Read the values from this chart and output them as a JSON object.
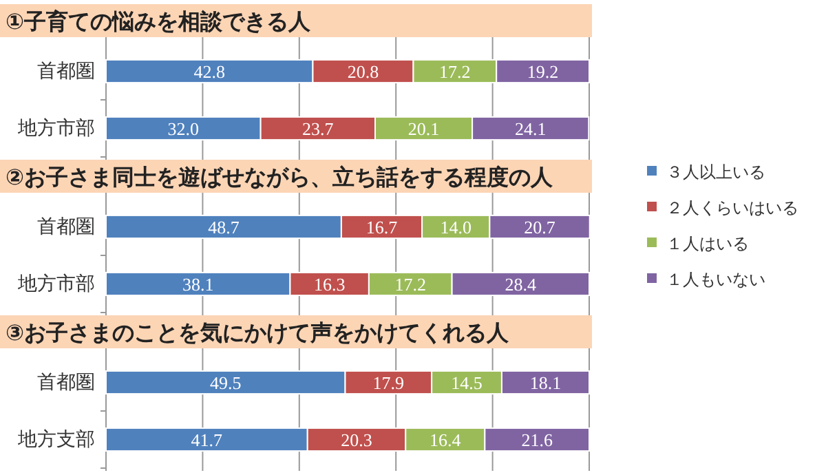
{
  "chart_data": [
    {
      "type": "bar",
      "orientation": "horizontal",
      "stacked": true,
      "title": "①子育ての悩みを相談できる人",
      "categories": [
        "首都圏",
        "地方市部"
      ],
      "xlim": [
        0,
        100
      ],
      "xticks": [
        {
          "value": 0,
          "label": null
        },
        {
          "value": 20,
          "label": null
        },
        {
          "value": 40,
          "label": null
        },
        {
          "value": 60,
          "label": null
        },
        {
          "value": 80,
          "label": null
        },
        {
          "value": 100,
          "label": null
        }
      ],
      "tick_labels": "y",
      "grid": "x",
      "legend": false,
      "series": [
        {
          "color": "#4f81bd",
          "values": [
            42.8,
            32.0
          ],
          "value_labels": [
            "42.8",
            "32.0"
          ]
        },
        {
          "color": "#c0504d",
          "values": [
            20.8,
            23.7
          ],
          "value_labels": [
            "20.8",
            "23.7"
          ]
        },
        {
          "color": "#9bbb59",
          "values": [
            17.2,
            20.1
          ],
          "value_labels": [
            "17.2",
            "20.1"
          ]
        },
        {
          "color": "#8064a2",
          "values": [
            19.2,
            24.1
          ],
          "value_labels": [
            "19.2",
            "24.1"
          ]
        }
      ]
    },
    {
      "type": "bar",
      "orientation": "horizontal",
      "stacked": true,
      "title": "②お子さま同士を遊ばせながら、立ち話をする程度の人",
      "categories": [
        "首都圏",
        "地方市部"
      ],
      "xlim": [
        0,
        100
      ],
      "xticks": [
        {
          "value": 0,
          "label": null
        },
        {
          "value": 20,
          "label": null
        },
        {
          "value": 40,
          "label": null
        },
        {
          "value": 60,
          "label": null
        },
        {
          "value": 80,
          "label": null
        },
        {
          "value": 100,
          "label": null
        }
      ],
      "tick_labels": "y",
      "grid": "x",
      "legend": "right",
      "series": [
        {
          "name": "３人以上いる",
          "color": "#4f81bd",
          "values": [
            48.7,
            38.1
          ],
          "value_labels": [
            "48.7",
            "38.1"
          ]
        },
        {
          "name": "２人くらいはいる",
          "color": "#c0504d",
          "values": [
            16.7,
            16.3
          ],
          "value_labels": [
            "16.7",
            "16.3"
          ]
        },
        {
          "name": "１人はいる",
          "color": "#9bbb59",
          "values": [
            14.0,
            17.2
          ],
          "value_labels": [
            "14.0",
            "17.2"
          ]
        },
        {
          "name": "１人もいない",
          "color": "#8064a2",
          "values": [
            20.7,
            28.4
          ],
          "value_labels": [
            "20.7",
            "28.4"
          ]
        }
      ]
    },
    {
      "type": "bar",
      "orientation": "horizontal",
      "stacked": true,
      "title": "③お子さまのことを気にかけて声をかけてくれる人",
      "categories": [
        "首都圏",
        "地方支部"
      ],
      "xlim": [
        0,
        100
      ],
      "xticks": [
        {
          "value": 0,
          "label": null
        },
        {
          "value": 20,
          "label": null
        },
        {
          "value": 40,
          "label": null
        },
        {
          "value": 60,
          "label": null
        },
        {
          "value": 80,
          "label": null
        },
        {
          "value": 100,
          "label": null
        }
      ],
      "tick_labels": "y",
      "grid": "x",
      "legend": false,
      "series": [
        {
          "color": "#4f81bd",
          "values": [
            49.5,
            41.7
          ],
          "value_labels": [
            "49.5",
            "41.7"
          ]
        },
        {
          "color": "#c0504d",
          "values": [
            17.9,
            20.3
          ],
          "value_labels": [
            "17.9",
            "20.3"
          ]
        },
        {
          "color": "#9bbb59",
          "values": [
            14.5,
            16.4
          ],
          "value_labels": [
            "14.5",
            "16.4"
          ]
        },
        {
          "color": "#8064a2",
          "values": [
            18.1,
            21.6
          ],
          "value_labels": [
            "18.1",
            "21.6"
          ]
        }
      ]
    }
  ]
}
